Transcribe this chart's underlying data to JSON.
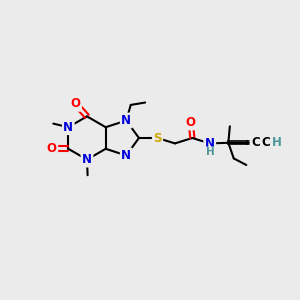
{
  "bg_color": "#ebebeb",
  "bond_color": "#000000",
  "bond_width": 1.5,
  "atom_colors": {
    "N": "#0000dd",
    "O": "#ff0000",
    "S": "#ccaa00",
    "C": "#000000",
    "H": "#4a9999"
  },
  "font_size_atom": 8.5,
  "font_size_small": 7.0
}
